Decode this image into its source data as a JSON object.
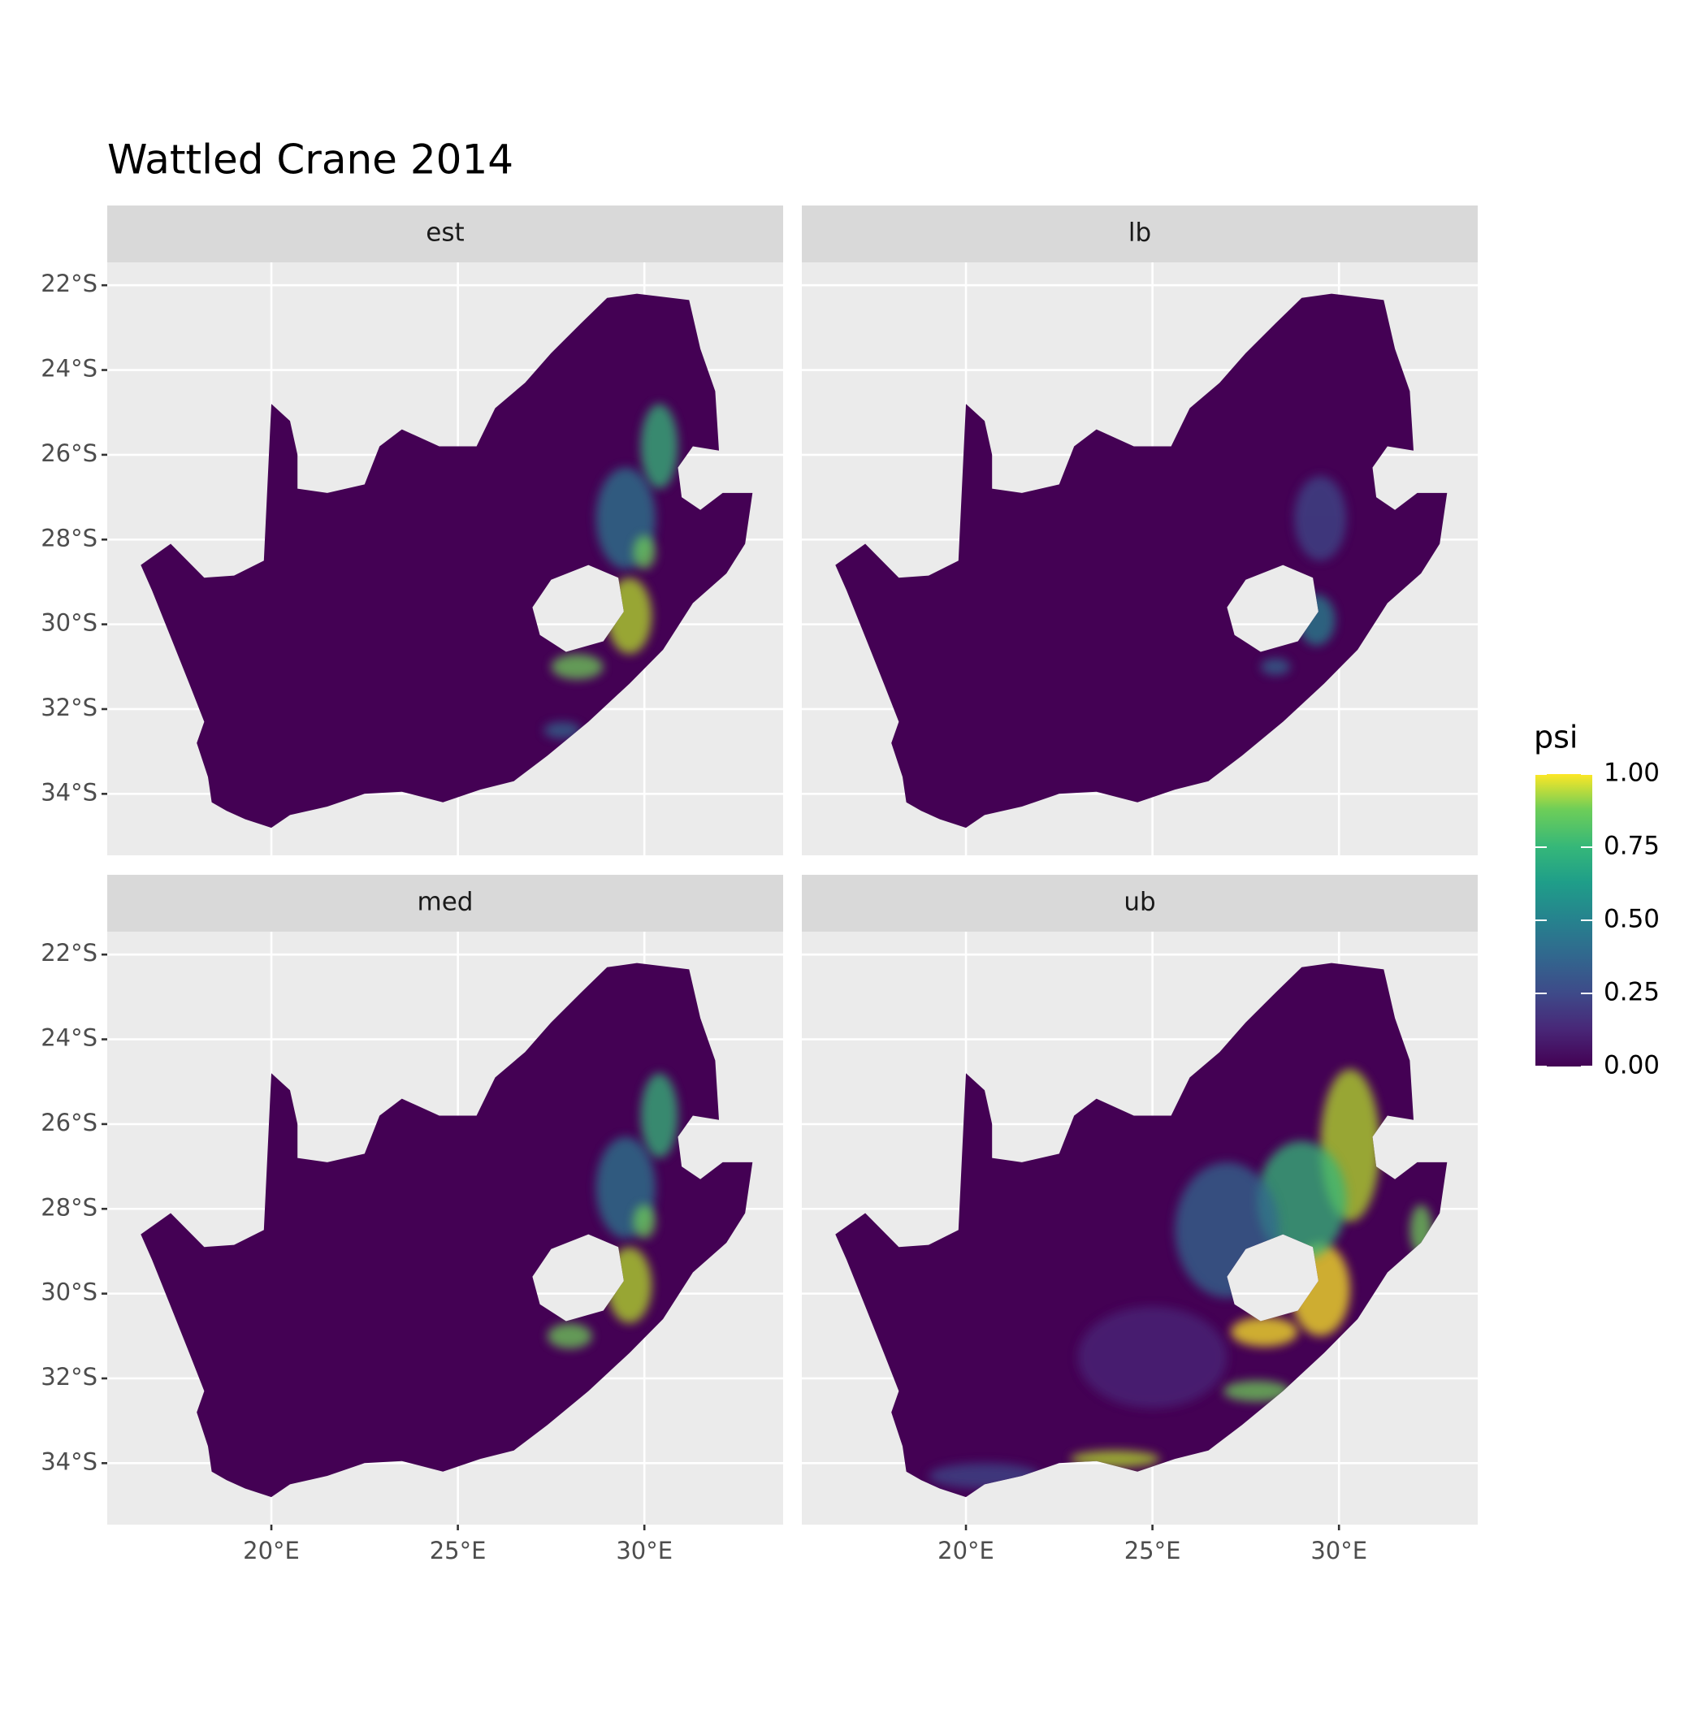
{
  "chart_data": {
    "type": "map",
    "title": "Wattled Crane 2014",
    "panels": [
      "est",
      "lb",
      "med",
      "ub"
    ],
    "xlim": [
      15.6,
      33.72
    ],
    "ylim": [
      -35.45,
      -21.46
    ],
    "xticks": [
      {
        "value": 20,
        "label": "20°E"
      },
      {
        "value": 25,
        "label": "25°E"
      },
      {
        "value": 30,
        "label": "30°E"
      }
    ],
    "yticks": [
      {
        "value": -22,
        "label": "22°S"
      },
      {
        "value": -24,
        "label": "24°S"
      },
      {
        "value": -26,
        "label": "26°S"
      },
      {
        "value": -28,
        "label": "28°S"
      },
      {
        "value": -30,
        "label": "30°S"
      },
      {
        "value": -32,
        "label": "32°S"
      },
      {
        "value": -34,
        "label": "34°S"
      }
    ],
    "legend": {
      "title": "psi",
      "limits": [
        0,
        1
      ],
      "ticks": [
        {
          "value": 0,
          "label": "0.00"
        },
        {
          "value": 0.25,
          "label": "0.25"
        },
        {
          "value": 0.5,
          "label": "0.50"
        },
        {
          "value": 0.75,
          "label": "0.75"
        },
        {
          "value": 1,
          "label": "1.00"
        }
      ]
    }
  }
}
